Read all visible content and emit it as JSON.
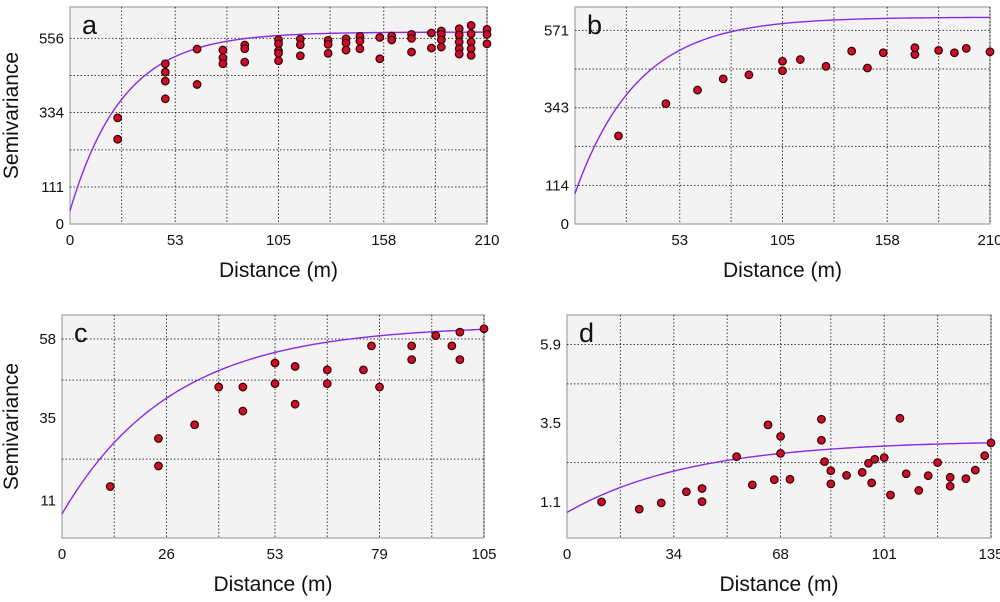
{
  "chart_data": [
    {
      "type": "scatter",
      "panel": "a",
      "xlabel": "Distance (m)",
      "ylabel": "Semivariance",
      "xlim": [
        0,
        210
      ],
      "ylim": [
        0,
        650
      ],
      "x_ticks": [
        0,
        53,
        105,
        158,
        210
      ],
      "y_ticks": [
        0,
        111,
        334,
        556
      ],
      "y_grid": [
        111,
        222,
        334,
        445,
        556
      ],
      "x_grid": [
        26,
        53,
        79,
        105,
        131,
        158,
        184,
        210
      ],
      "grid": true,
      "model": {
        "nugget": 40,
        "sill": 535,
        "range": 80
      },
      "points": [
        [
          24,
          318
        ],
        [
          24,
          254
        ],
        [
          48,
          480
        ],
        [
          48,
          455
        ],
        [
          48,
          428
        ],
        [
          48,
          375
        ],
        [
          64,
          524
        ],
        [
          64,
          418
        ],
        [
          77,
          521
        ],
        [
          77,
          498
        ],
        [
          77,
          480
        ],
        [
          88,
          536
        ],
        [
          88,
          525
        ],
        [
          88,
          485
        ],
        [
          105,
          552
        ],
        [
          105,
          540
        ],
        [
          105,
          519
        ],
        [
          105,
          511
        ],
        [
          105,
          489
        ],
        [
          116,
          554
        ],
        [
          116,
          537
        ],
        [
          116,
          504
        ],
        [
          130,
          550
        ],
        [
          130,
          538
        ],
        [
          130,
          511
        ],
        [
          139,
          555
        ],
        [
          139,
          542
        ],
        [
          139,
          521
        ],
        [
          146,
          562
        ],
        [
          146,
          548
        ],
        [
          146,
          525
        ],
        [
          156,
          559
        ],
        [
          156,
          495
        ],
        [
          162,
          563
        ],
        [
          162,
          551
        ],
        [
          172,
          568
        ],
        [
          172,
          556
        ],
        [
          172,
          515
        ],
        [
          182,
          572
        ],
        [
          182,
          527
        ],
        [
          187,
          578
        ],
        [
          187,
          568
        ],
        [
          187,
          552
        ],
        [
          187,
          530
        ],
        [
          196,
          585
        ],
        [
          196,
          566
        ],
        [
          196,
          545
        ],
        [
          196,
          525
        ],
        [
          196,
          509
        ],
        [
          202,
          595
        ],
        [
          202,
          570
        ],
        [
          202,
          545
        ],
        [
          202,
          525
        ],
        [
          202,
          505
        ],
        [
          210,
          583
        ],
        [
          210,
          568
        ],
        [
          210,
          540
        ]
      ]
    },
    {
      "type": "scatter",
      "panel": "b",
      "xlabel": "Distance (m)",
      "ylabel": "",
      "xlim": [
        0,
        210
      ],
      "ylim": [
        0,
        640
      ],
      "x_ticks": [
        53,
        105,
        158,
        210
      ],
      "y_ticks": [
        0,
        114,
        343,
        571
      ],
      "y_grid": [
        114,
        229,
        343,
        457,
        571
      ],
      "x_grid": [
        26,
        53,
        79,
        105,
        131,
        158,
        184,
        210
      ],
      "grid": true,
      "model": {
        "nugget": 90,
        "sill": 520,
        "range": 95
      },
      "points": [
        [
          22,
          260
        ],
        [
          46,
          355
        ],
        [
          62,
          395
        ],
        [
          75,
          428
        ],
        [
          88,
          440
        ],
        [
          105,
          480
        ],
        [
          105,
          452
        ],
        [
          114,
          485
        ],
        [
          127,
          465
        ],
        [
          140,
          510
        ],
        [
          148,
          460
        ],
        [
          156,
          505
        ],
        [
          172,
          500
        ],
        [
          172,
          520
        ],
        [
          184,
          512
        ],
        [
          192,
          505
        ],
        [
          198,
          518
        ],
        [
          210,
          508
        ]
      ]
    },
    {
      "type": "scatter",
      "panel": "c",
      "xlabel": "Distance (m)",
      "ylabel": "Semivariance",
      "xlim": [
        0,
        105
      ],
      "ylim": [
        0,
        65
      ],
      "x_ticks": [
        0,
        26,
        53,
        79,
        105
      ],
      "y_ticks": [
        11,
        35,
        58
      ],
      "y_grid": [
        23,
        46,
        58
      ],
      "x_grid": [
        13,
        26,
        39,
        53,
        66,
        79,
        92,
        105
      ],
      "grid": true,
      "model": {
        "nugget": 7,
        "sill": 55,
        "range": 82
      },
      "points": [
        [
          12,
          15
        ],
        [
          24,
          29
        ],
        [
          24,
          21
        ],
        [
          33,
          33
        ],
        [
          39,
          44
        ],
        [
          45,
          44
        ],
        [
          45,
          37
        ],
        [
          53,
          51
        ],
        [
          53,
          45
        ],
        [
          58,
          50
        ],
        [
          58,
          39
        ],
        [
          66,
          49
        ],
        [
          66,
          45
        ],
        [
          75,
          49
        ],
        [
          77,
          56
        ],
        [
          79,
          44
        ],
        [
          87,
          56
        ],
        [
          87,
          52
        ],
        [
          93,
          59
        ],
        [
          97,
          56
        ],
        [
          99,
          60
        ],
        [
          99,
          52
        ],
        [
          105,
          61
        ]
      ]
    },
    {
      "type": "scatter",
      "panel": "d",
      "xlabel": "Distance (m)",
      "ylabel": "",
      "xlim": [
        0,
        135
      ],
      "ylim": [
        0,
        6.8
      ],
      "x_ticks": [
        0,
        34,
        68,
        101,
        135
      ],
      "y_ticks": [
        1.1,
        3.5,
        5.9
      ],
      "y_grid": [
        2.3,
        4.7,
        5.9
      ],
      "x_grid": [
        17,
        34,
        51,
        68,
        84,
        101,
        118,
        135
      ],
      "grid": true,
      "model": {
        "nugget": 0.78,
        "sill": 2.2,
        "range": 120
      },
      "points": [
        [
          11,
          1.1
        ],
        [
          23,
          0.88
        ],
        [
          30,
          1.07
        ],
        [
          38,
          1.41
        ],
        [
          43,
          1.51
        ],
        [
          43,
          1.11
        ],
        [
          54,
          2.48
        ],
        [
          59,
          1.62
        ],
        [
          64,
          3.45
        ],
        [
          66,
          1.78
        ],
        [
          68,
          3.1
        ],
        [
          68,
          2.58
        ],
        [
          71,
          1.79
        ],
        [
          81,
          3.62
        ],
        [
          81,
          2.98
        ],
        [
          82,
          2.33
        ],
        [
          84,
          1.65
        ],
        [
          84,
          2.05
        ],
        [
          89,
          1.91
        ],
        [
          94,
          2.0
        ],
        [
          96,
          2.28
        ],
        [
          97,
          1.68
        ],
        [
          98,
          2.4
        ],
        [
          101,
          2.45
        ],
        [
          103,
          1.31
        ],
        [
          106,
          3.65
        ],
        [
          108,
          1.96
        ],
        [
          112,
          1.45
        ],
        [
          115,
          1.9
        ],
        [
          118,
          2.3
        ],
        [
          122,
          1.58
        ],
        [
          122,
          1.85
        ],
        [
          127,
          1.81
        ],
        [
          130,
          2.07
        ],
        [
          133,
          2.51
        ],
        [
          135,
          2.9
        ]
      ]
    }
  ]
}
